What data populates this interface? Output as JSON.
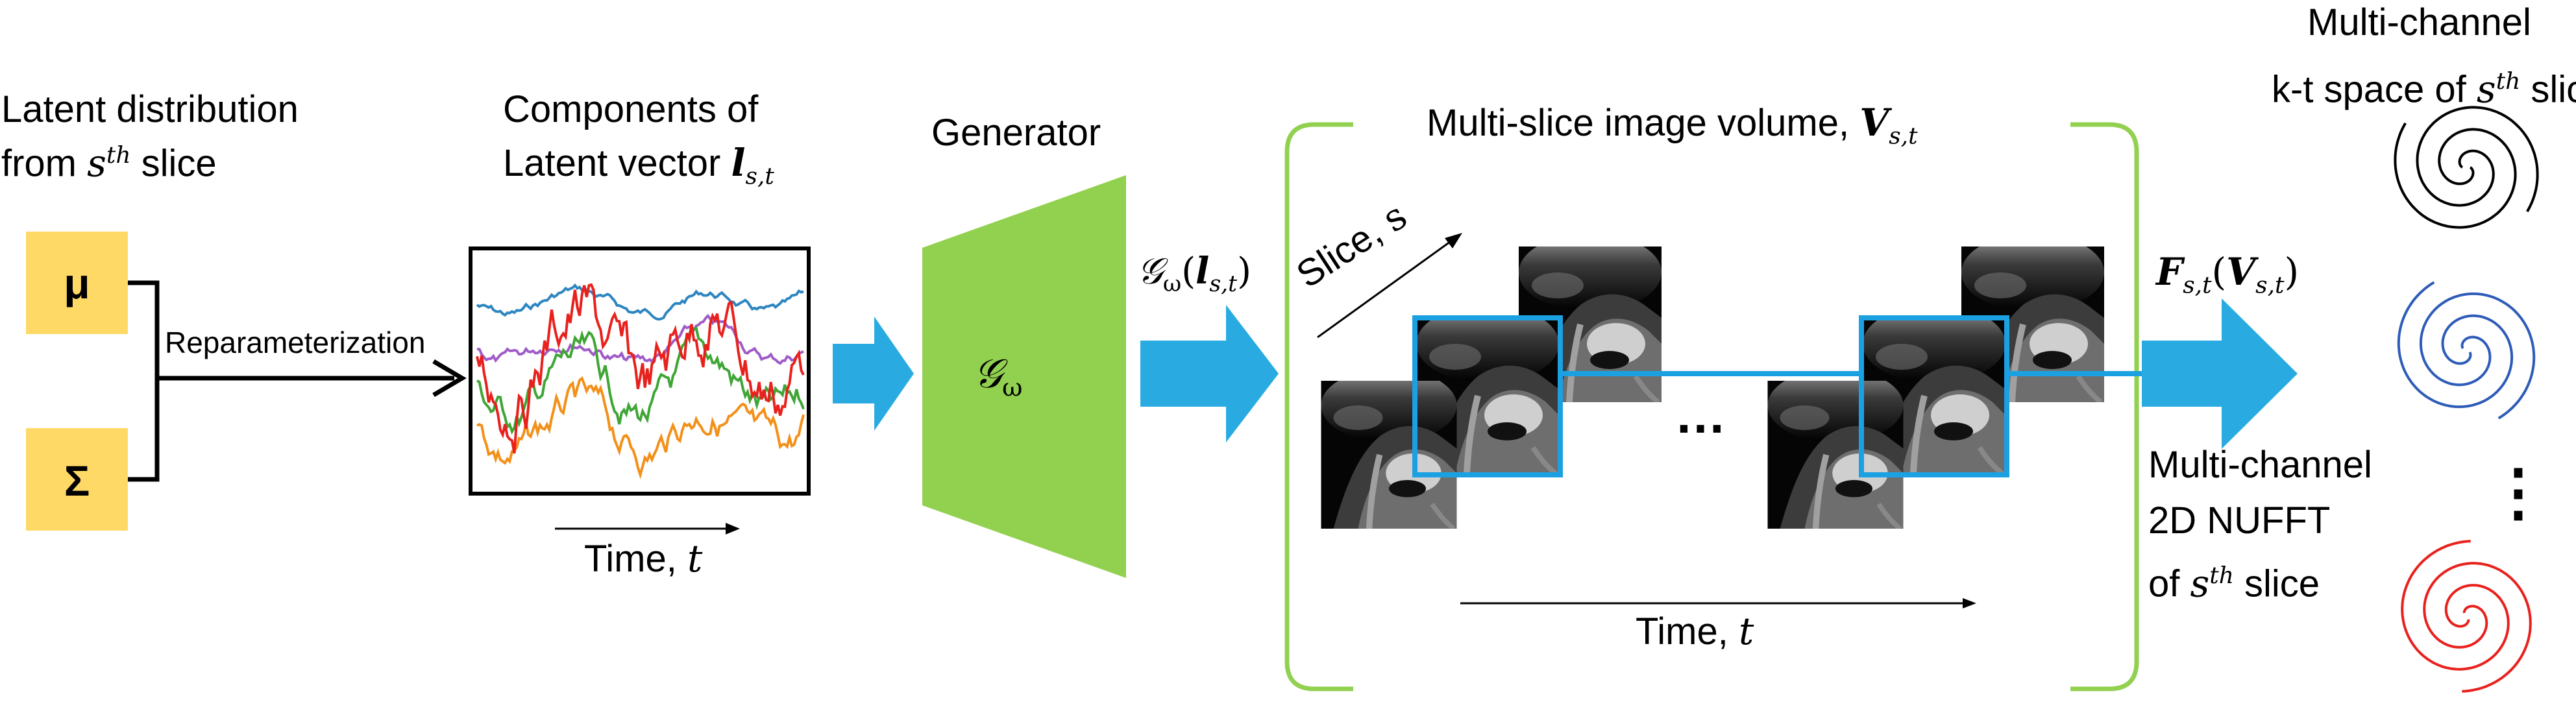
{
  "latent": {
    "line1": "Latent distribution",
    "line2_prefix": "from ",
    "line2_var": "s",
    "line2_sup": "th",
    "line2_suffix": " slice",
    "mu": "μ",
    "sigma": "Σ",
    "reparam": "Reparameterization"
  },
  "components": {
    "line1": "Components of",
    "line2_prefix": "Latent vector ",
    "vec_symbol": "l",
    "vec_sub": "s,t",
    "time_label_prefix": "Time, ",
    "time_var": "t"
  },
  "generator": {
    "title": "Generator",
    "symbol": "𝒢",
    "symbol_sub": "ω",
    "output_fn": "𝒢",
    "output_sub": "ω",
    "output_arg": "l",
    "output_arg_sub": "s,t"
  },
  "volume": {
    "title_prefix": "Multi-slice image volume, ",
    "title_symbol": "V",
    "title_sub": "s,t",
    "slice_label_prefix": "Slice, ",
    "slice_var": "s",
    "ellipsis": "…",
    "time_label_prefix": "Time, ",
    "time_var": "t"
  },
  "nufft_op": {
    "symbol": "F",
    "sub": "s,t",
    "arg": "V",
    "arg_sub": "s,t"
  },
  "kspace": {
    "line1": "Multi-channel",
    "line2_prefix": "k-t space of ",
    "line2_var": "s",
    "line2_sup": "th",
    "line2_suffix": " slice",
    "ellipsis_v": "⋮"
  },
  "nufft": {
    "line1": "Multi-channel",
    "line2": "2D NUFFT",
    "line3_prefix": "of ",
    "line3_var": "s",
    "line3_sup": "th",
    "line3_suffix": " slice"
  },
  "colors": {
    "gold": "#FFD966",
    "green": "#92D050",
    "blue_arrow": "#29ABE2",
    "frame_blue": "#1BA1E2",
    "spiral_black": "#000000",
    "spiral_blue": "#2E5CB8",
    "spiral_red": "#E8211D",
    "trace_red": "#E8211D",
    "trace_blue": "#2E86C1",
    "trace_purple": "#A05CC8",
    "trace_green": "#3FA535",
    "trace_orange": "#F39019"
  }
}
